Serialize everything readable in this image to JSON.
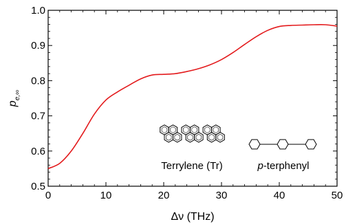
{
  "chart_data": {
    "type": "line",
    "xlabel": "Δν  (THz)",
    "ylabel": "p",
    "ylabel_subscript": "e,∞",
    "xlim": [
      0,
      50
    ],
    "ylim": [
      0.5,
      1.0
    ],
    "xticks": [
      "0",
      "10",
      "20",
      "30",
      "40",
      "50"
    ],
    "yticks": [
      "0.5",
      "0.6",
      "0.7",
      "0.8",
      "0.9",
      "1.0"
    ],
    "grid": false,
    "series": [
      {
        "color": "#e31a1c",
        "x": [
          0,
          2,
          4,
          6,
          8,
          10,
          12,
          14,
          16,
          18,
          20,
          22,
          24,
          26,
          28,
          30,
          32,
          34,
          36,
          38,
          40,
          42,
          44,
          46,
          48,
          50
        ],
        "y": [
          0.55,
          0.565,
          0.6,
          0.65,
          0.705,
          0.745,
          0.768,
          0.787,
          0.805,
          0.816,
          0.818,
          0.82,
          0.826,
          0.834,
          0.845,
          0.86,
          0.88,
          0.903,
          0.925,
          0.943,
          0.954,
          0.957,
          0.958,
          0.959,
          0.959,
          0.955
        ]
      }
    ],
    "annotations": [
      {
        "text": "Terrylene (Tr)"
      },
      {
        "text": "p",
        "style": "italic"
      },
      {
        "text": "-terphenyl"
      }
    ]
  }
}
